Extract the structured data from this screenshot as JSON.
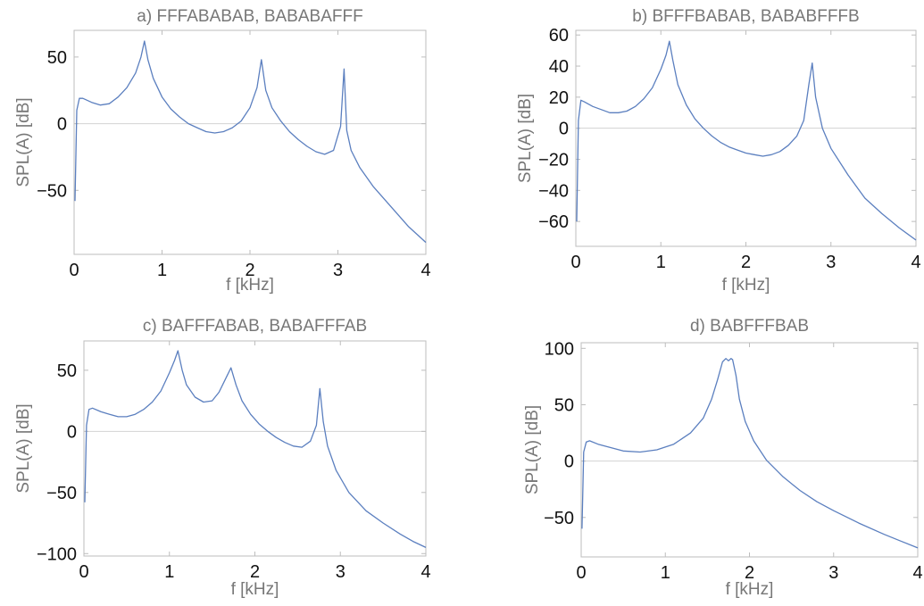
{
  "chart_data": [
    {
      "type": "line",
      "title": "a) FFFABABAB, BABABAFFF",
      "xlabel": "f [kHz]",
      "ylabel": "SPL(A) [dB]",
      "xlim": [
        0,
        4
      ],
      "ylim": [
        -98,
        70
      ],
      "xticks": [
        0,
        1,
        2,
        3,
        4
      ],
      "yticks": [
        -50,
        0,
        50
      ],
      "grid": false,
      "zero_line": true,
      "series": [
        {
          "x": [
            0.01,
            0.03,
            0.06,
            0.1,
            0.2,
            0.3,
            0.4,
            0.5,
            0.6,
            0.7,
            0.76,
            0.8,
            0.84,
            0.9,
            1.0,
            1.1,
            1.2,
            1.3,
            1.4,
            1.5,
            1.6,
            1.7,
            1.8,
            1.9,
            2.0,
            2.08,
            2.13,
            2.18,
            2.25,
            2.35,
            2.45,
            2.55,
            2.65,
            2.75,
            2.85,
            2.95,
            3.03,
            3.07,
            3.1,
            3.15,
            3.25,
            3.4,
            3.6,
            3.8,
            4.0
          ],
          "y": [
            -58,
            10,
            19,
            19,
            16,
            14,
            15,
            20,
            27,
            38,
            50,
            62,
            48,
            34,
            20,
            11,
            5,
            0,
            -3,
            -6,
            -7,
            -6,
            -3,
            2,
            12,
            27,
            48,
            25,
            12,
            2,
            -6,
            -12,
            -17,
            -21,
            -23,
            -20,
            -2,
            41,
            -5,
            -20,
            -33,
            -47,
            -62,
            -77,
            -89
          ]
        }
      ]
    },
    {
      "type": "line",
      "title": "b) BFFFBABAB, BABABFFFB",
      "xlabel": "f [kHz]",
      "ylabel": "SPL(A) [dB]",
      "xlim": [
        0,
        4
      ],
      "ylim": [
        -76,
        63
      ],
      "xticks": [
        0,
        1,
        2,
        3,
        4
      ],
      "yticks": [
        -60,
        -40,
        -20,
        0,
        20,
        40,
        60
      ],
      "grid": false,
      "zero_line": true,
      "series": [
        {
          "x": [
            0.01,
            0.03,
            0.06,
            0.1,
            0.2,
            0.3,
            0.4,
            0.5,
            0.6,
            0.7,
            0.8,
            0.9,
            1.0,
            1.06,
            1.1,
            1.14,
            1.2,
            1.3,
            1.4,
            1.5,
            1.6,
            1.7,
            1.8,
            1.9,
            2.0,
            2.1,
            2.2,
            2.3,
            2.4,
            2.5,
            2.6,
            2.68,
            2.74,
            2.78,
            2.82,
            2.9,
            3.0,
            3.2,
            3.4,
            3.6,
            3.8,
            4.0
          ],
          "y": [
            -60,
            5,
            18,
            17,
            14,
            12,
            10,
            10,
            11,
            14,
            19,
            26,
            38,
            47,
            56,
            44,
            28,
            15,
            6,
            0,
            -5,
            -9,
            -12,
            -14,
            -16,
            -17,
            -18,
            -17,
            -15,
            -11,
            -5,
            5,
            28,
            42,
            20,
            0,
            -13,
            -30,
            -45,
            -55,
            -64,
            -72
          ]
        }
      ]
    },
    {
      "type": "line",
      "title": "c) BAFFFABAB, BABAFFFAB",
      "xlabel": "f [kHz]",
      "ylabel": "SPL(A) [dB]",
      "xlim": [
        0,
        4
      ],
      "ylim": [
        -102,
        74
      ],
      "xticks": [
        0,
        1,
        2,
        3,
        4
      ],
      "yticks": [
        -100,
        -50,
        0,
        50
      ],
      "grid": false,
      "zero_line": true,
      "series": [
        {
          "x": [
            0.01,
            0.03,
            0.06,
            0.1,
            0.2,
            0.3,
            0.4,
            0.5,
            0.6,
            0.7,
            0.8,
            0.9,
            1.0,
            1.06,
            1.1,
            1.15,
            1.2,
            1.3,
            1.4,
            1.5,
            1.58,
            1.65,
            1.72,
            1.78,
            1.85,
            1.95,
            2.05,
            2.15,
            2.25,
            2.35,
            2.45,
            2.55,
            2.65,
            2.72,
            2.76,
            2.8,
            2.85,
            2.95,
            3.1,
            3.3,
            3.5,
            3.7,
            3.85,
            4.0
          ],
          "y": [
            -58,
            5,
            18,
            19,
            16,
            14,
            12,
            12,
            14,
            18,
            24,
            33,
            48,
            58,
            66,
            50,
            38,
            28,
            24,
            25,
            32,
            42,
            52,
            38,
            25,
            14,
            6,
            0,
            -5,
            -9,
            -12,
            -13,
            -8,
            5,
            35,
            8,
            -12,
            -32,
            -50,
            -65,
            -75,
            -84,
            -90,
            -95
          ]
        }
      ]
    },
    {
      "type": "line",
      "title": "d) BABFFFBAB",
      "xlabel": "f [kHz]",
      "ylabel": "SPL(A) [dB]",
      "xlim": [
        0,
        4
      ],
      "ylim": [
        -85,
        105
      ],
      "xticks": [
        0,
        1,
        2,
        3,
        4
      ],
      "yticks": [
        -50,
        0,
        50,
        100
      ],
      "grid": false,
      "zero_line": true,
      "series": [
        {
          "x": [
            0.01,
            0.03,
            0.06,
            0.1,
            0.2,
            0.3,
            0.5,
            0.7,
            0.9,
            1.1,
            1.3,
            1.45,
            1.55,
            1.62,
            1.68,
            1.72,
            1.75,
            1.78,
            1.8,
            1.84,
            1.88,
            1.95,
            2.05,
            2.2,
            2.4,
            2.6,
            2.8,
            3.0,
            3.3,
            3.6,
            3.8,
            4.0
          ],
          "y": [
            -60,
            8,
            17,
            18,
            15,
            13,
            9,
            8,
            10,
            15,
            25,
            38,
            55,
            72,
            88,
            91,
            89,
            91,
            90,
            76,
            55,
            35,
            18,
            1,
            -14,
            -26,
            -36,
            -44,
            -55,
            -65,
            -71,
            -77
          ]
        }
      ]
    }
  ]
}
